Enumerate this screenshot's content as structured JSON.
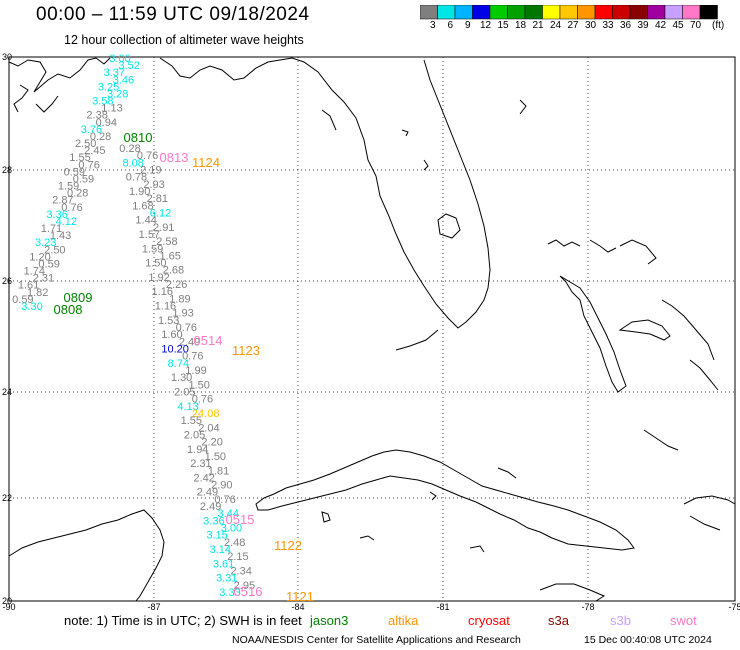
{
  "title": "00:00  –  11:59 UTC 09/18/2024",
  "subtitle": "12 hour collection of altimeter wave heights",
  "legend": {
    "unit": "(ft)",
    "labels": [
      "3",
      "6",
      "9",
      "12",
      "15",
      "18",
      "21",
      "24",
      "27",
      "30",
      "33",
      "36",
      "39",
      "42",
      "45",
      "70"
    ],
    "colors": [
      "#7f7f7f",
      "#00e6e6",
      "#00b4ff",
      "#0000e6",
      "#00cc00",
      "#00a000",
      "#007800",
      "#ffff00",
      "#ffc800",
      "#ff9600",
      "#ff0000",
      "#c80000",
      "#8b0000",
      "#a000a0",
      "#c8a0ff",
      "#ff78c8",
      "#000000"
    ]
  },
  "axes": {
    "lon_ticks": [
      "-90",
      "-87",
      "-84",
      "-81",
      "-78",
      "-75"
    ],
    "lat_ticks": [
      "30",
      "28",
      "26",
      "24",
      "22",
      "20"
    ]
  },
  "tracks": {
    "left_track": [
      "3.00",
      "3.52",
      "3.37",
      "3.46",
      "3.25",
      "3.28",
      "3.58",
      "1.13",
      "2.38",
      "0.94",
      "3.76",
      "0.28",
      "2.50",
      "2.45",
      "1.55",
      "0.76",
      "0.59",
      "0.59",
      "1.59",
      "0.28",
      "2.87",
      "0.76",
      "3.36",
      "4.12",
      "1.71",
      "1.43",
      "3.23",
      "2.50",
      "1.20",
      "0.59",
      "1.74",
      "2.31",
      "1.61",
      "1.82",
      "0.59",
      "3.30"
    ],
    "right_track": [
      "0.28",
      "0.76",
      "8.08",
      "2.19",
      "0.78",
      "2.93",
      "1.90",
      "2.81",
      "1.68",
      "6.12",
      "1.44",
      "2.91",
      "1.57",
      "2.58",
      "1.59",
      "1.65",
      "1.50",
      "2.68",
      "1.92",
      "2.26",
      "1.16",
      "1.89",
      "1.16",
      "1.93",
      "1.53",
      "0.76",
      "1.60",
      "2.49",
      "10.20",
      "0.76",
      "8.74",
      "1.99",
      "1.30",
      "1.50",
      "2.05",
      "0.76",
      "4.13",
      "24.08",
      "1.55",
      "2.04",
      "2.05",
      "2.20",
      "1.94",
      "1.50",
      "2.31",
      "1.81",
      "2.42",
      "2.90",
      "2.49",
      "0.76",
      "2.49",
      "3.44",
      "3.36",
      "3.00",
      "3.15",
      "2.48",
      "3.14",
      "2.15",
      "3.61",
      "2.34",
      "3.31",
      "2.95",
      "3.33"
    ],
    "time_labels": [
      {
        "text": "0810",
        "sat": "jason3"
      },
      {
        "text": "0809",
        "sat": "jason3"
      },
      {
        "text": "0808",
        "sat": "jason3"
      },
      {
        "text": "0813",
        "sat": "swot"
      },
      {
        "text": "1124",
        "sat": "altika"
      },
      {
        "text": "0514",
        "sat": "swot"
      },
      {
        "text": "1123",
        "sat": "altika"
      },
      {
        "text": "0515",
        "sat": "swot"
      },
      {
        "text": "1122",
        "sat": "altika"
      },
      {
        "text": "0516",
        "sat": "swot"
      },
      {
        "text": "1121",
        "sat": "altika"
      }
    ]
  },
  "note": "note: 1) Time is in UTC; 2) SWH is in feet",
  "satellites": [
    {
      "name": "jason3",
      "color": "#008000"
    },
    {
      "name": "altika",
      "color": "#ff9600"
    },
    {
      "name": "cryosat",
      "color": "#ff0000"
    },
    {
      "name": "s3a",
      "color": "#8b0000"
    },
    {
      "name": "s3b",
      "color": "#c8a0ff"
    },
    {
      "name": "swot",
      "color": "#ff78c8"
    }
  ],
  "credit": "NOAA/NESDIS Center for Satellite Applications and Research",
  "timestamp": "15 Dec 00:40:08 UTC 2024"
}
